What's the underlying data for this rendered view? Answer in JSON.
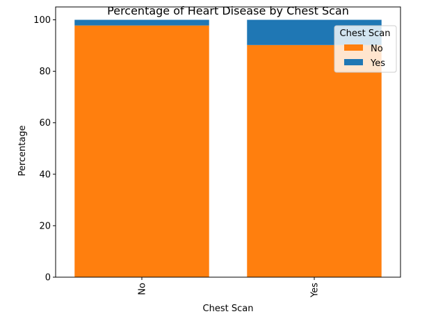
{
  "chart_data": {
    "type": "bar",
    "stacked": true,
    "title": "Percentage of Heart Disease by Chest Scan",
    "xlabel": "Chest Scan",
    "ylabel": "Percentage",
    "categories": [
      "No",
      "Yes"
    ],
    "series": [
      {
        "name": "No",
        "values": [
          97.8,
          90.2
        ],
        "color": "#ff7f0e"
      },
      {
        "name": "Yes",
        "values": [
          2.2,
          9.8
        ],
        "color": "#1f77b4"
      }
    ],
    "ylim": [
      0,
      105
    ],
    "yticks": [
      0,
      20,
      40,
      60,
      80,
      100
    ],
    "legend": {
      "title": "Chest Scan",
      "position": "top-right"
    },
    "grid": false
  }
}
